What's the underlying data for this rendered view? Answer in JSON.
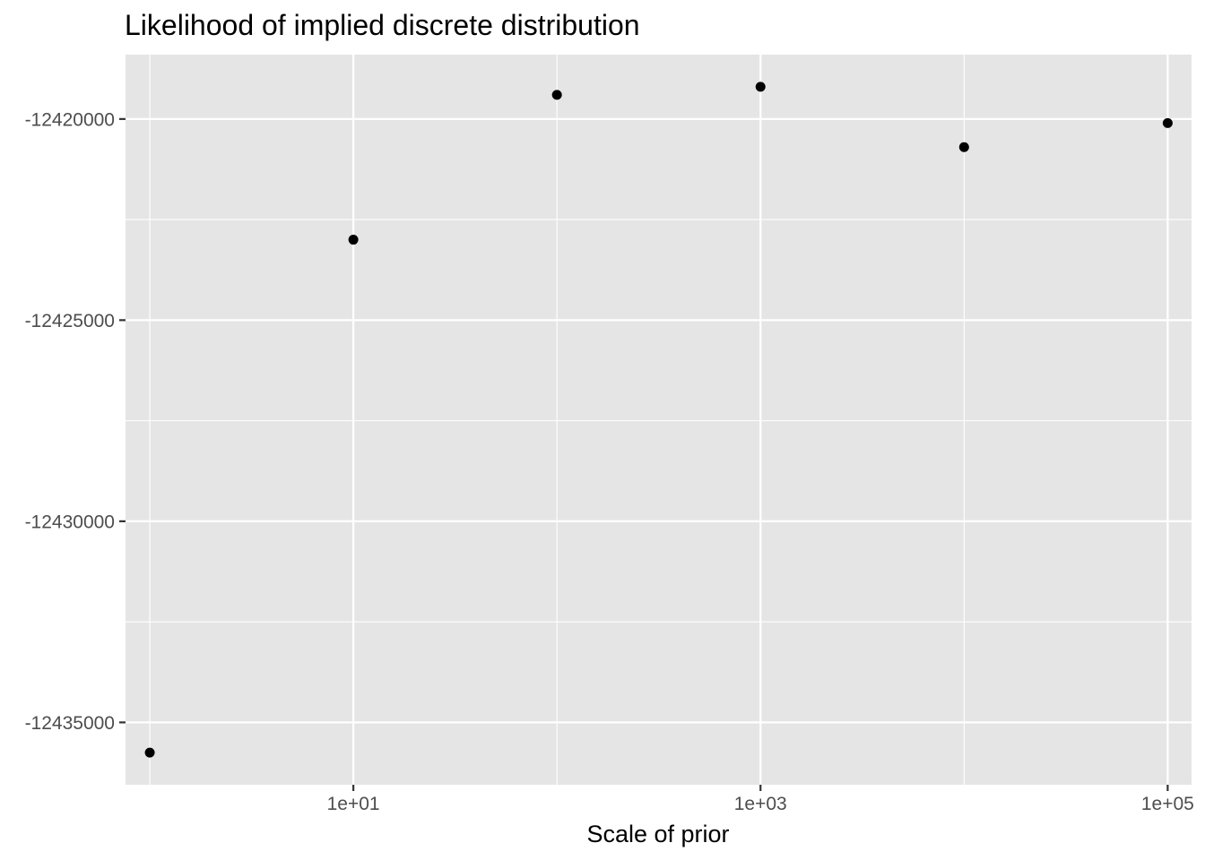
{
  "chart_data": {
    "type": "scatter",
    "title": "Likelihood of implied discrete distribution",
    "xlabel": "Scale of prior",
    "ylabel": "",
    "x_scale": "log10",
    "x": [
      1,
      10,
      100,
      1000,
      10000,
      100000
    ],
    "y": [
      -12435750,
      -12423000,
      -12419400,
      -12419200,
      -12420700,
      -12420100
    ],
    "xlim": [
      0.76,
      131000
    ],
    "ylim": [
      -12436550,
      -12418400
    ],
    "x_ticks": [
      {
        "value": 10,
        "label": "1e+01"
      },
      {
        "value": 1000,
        "label": "1e+03"
      },
      {
        "value": 100000,
        "label": "1e+05"
      }
    ],
    "x_minor_ticks": [
      1,
      100,
      10000
    ],
    "y_ticks": [
      {
        "value": -12420000,
        "label": "-12420000"
      },
      {
        "value": -12425000,
        "label": "-12425000"
      },
      {
        "value": -12430000,
        "label": "-12430000"
      },
      {
        "value": -12435000,
        "label": "-12435000"
      }
    ],
    "y_minor_ticks": [
      -12422500,
      -12427500,
      -12432500
    ],
    "grid": true,
    "legend": "none",
    "colors": {
      "panel_background": "#E5E5E5",
      "grid_line": "#FFFFFF",
      "point": "#000000",
      "tick_label": "#4D4D4D",
      "tick_mark": "#333333"
    }
  }
}
